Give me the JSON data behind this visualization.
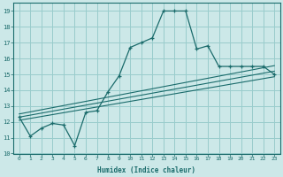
{
  "xlabel": "Humidex (Indice chaleur)",
  "xlim": [
    -0.5,
    23.5
  ],
  "ylim": [
    10,
    19.5
  ],
  "xticks": [
    0,
    1,
    2,
    3,
    4,
    5,
    6,
    7,
    8,
    9,
    10,
    11,
    12,
    13,
    14,
    15,
    16,
    17,
    18,
    19,
    20,
    21,
    22,
    23
  ],
  "yticks": [
    10,
    11,
    12,
    13,
    14,
    15,
    16,
    17,
    18,
    19
  ],
  "bg_color": "#cce8e8",
  "grid_color": "#99cccc",
  "line_color": "#1a6b6b",
  "main_x": [
    0,
    1,
    2,
    3,
    4,
    5,
    6,
    7,
    8,
    9,
    10,
    11,
    12,
    13,
    14,
    15,
    16,
    17,
    18,
    19,
    20,
    21,
    22,
    23
  ],
  "main_y": [
    12.3,
    11.1,
    11.6,
    11.9,
    11.8,
    10.5,
    12.6,
    12.7,
    13.9,
    14.9,
    16.7,
    17.0,
    17.3,
    19.0,
    19.0,
    19.0,
    16.6,
    16.8,
    15.5,
    15.5,
    15.5,
    15.5,
    15.5,
    15.0
  ],
  "line1_x": [
    0,
    23
  ],
  "line1_y": [
    12.1,
    14.85
  ],
  "line2_x": [
    0,
    23
  ],
  "line2_y": [
    12.3,
    15.2
  ],
  "line3_x": [
    0,
    23
  ],
  "line3_y": [
    12.5,
    15.55
  ]
}
